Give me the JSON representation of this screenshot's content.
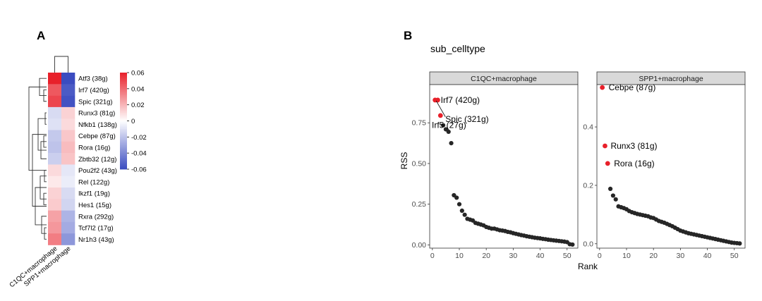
{
  "panels": {
    "a_label": "A",
    "b_label": "B"
  },
  "chart_data": [
    {
      "type": "heatmap",
      "rows": [
        "Atf3 (38g)",
        "Irf7 (420g)",
        "Spic (321g)",
        "Runx3 (81g)",
        "Nfkb1 (138g)",
        "Cebpe (87g)",
        "Rora (16g)",
        "Zbtb32 (12g)",
        "Pou2f2 (43g)",
        "Rel (122g)",
        "Ikzf1 (19g)",
        "Hes1 (15g)",
        "Rxra (292g)",
        "Tcf7l2 (17g)",
        "Nr1h3 (43g)"
      ],
      "columns": [
        "C1QC+macrophage",
        "SPP1+macrophage"
      ],
      "values": [
        [
          0.06,
          -0.06
        ],
        [
          0.045,
          -0.055
        ],
        [
          0.05,
          -0.058
        ],
        [
          -0.012,
          0.012
        ],
        [
          -0.01,
          0.01
        ],
        [
          -0.018,
          0.015
        ],
        [
          -0.02,
          0.018
        ],
        [
          -0.016,
          0.016
        ],
        [
          0.01,
          -0.008
        ],
        [
          0.006,
          -0.006
        ],
        [
          0.012,
          -0.012
        ],
        [
          0.014,
          -0.014
        ],
        [
          0.025,
          -0.025
        ],
        [
          0.028,
          -0.028
        ],
        [
          0.035,
          -0.035
        ]
      ],
      "colorbar": {
        "ticks": [
          "0.06",
          "0.04",
          "0.02",
          "0",
          "-0.02",
          "-0.04",
          "-0.06"
        ],
        "range": [
          -0.06,
          0.06
        ],
        "low_color": "#3b4cc0",
        "mid_color": "#ffffff",
        "high_color": "#e8202a"
      }
    },
    {
      "type": "scatter",
      "title": "sub_celltype",
      "xlabel": "Rank",
      "ylabel": "RSS",
      "facets": [
        {
          "name": "C1QC+macrophage",
          "xlim": [
            -1,
            54
          ],
          "ylim": [
            -0.02,
            0.985
          ],
          "xticks": [
            0,
            10,
            20,
            30,
            40,
            50
          ],
          "yticks": [
            0.0,
            0.25,
            0.5,
            0.75
          ],
          "ytick_labels": [
            "0.00",
            "0.25",
            "0.50",
            "0.75"
          ],
          "highlight": [
            {
              "x": 1,
              "y": 0.89,
              "label": "Irf7 (420g)"
            },
            {
              "x": 2,
              "y": 0.89,
              "label": ""
            },
            {
              "x": 3,
              "y": 0.795,
              "label": "Spic (321g)"
            }
          ],
          "label_irf5": "Irf5 (27g)",
          "points": [
            [
              4,
              0.735
            ],
            [
              5,
              0.71
            ],
            [
              6,
              0.695
            ],
            [
              7,
              0.625
            ],
            [
              8,
              0.305
            ],
            [
              9,
              0.29
            ],
            [
              10,
              0.25
            ],
            [
              11,
              0.21
            ],
            [
              12,
              0.185
            ],
            [
              13,
              0.16
            ],
            [
              14,
              0.155
            ],
            [
              15,
              0.15
            ],
            [
              16,
              0.135
            ],
            [
              17,
              0.13
            ],
            [
              18,
              0.125
            ],
            [
              19,
              0.12
            ],
            [
              20,
              0.11
            ],
            [
              21,
              0.105
            ],
            [
              22,
              0.1
            ],
            [
              23,
              0.1
            ],
            [
              24,
              0.095
            ],
            [
              25,
              0.09
            ],
            [
              26,
              0.088
            ],
            [
              27,
              0.085
            ],
            [
              28,
              0.08
            ],
            [
              29,
              0.077
            ],
            [
              30,
              0.072
            ],
            [
              31,
              0.068
            ],
            [
              32,
              0.064
            ],
            [
              33,
              0.06
            ],
            [
              34,
              0.057
            ],
            [
              35,
              0.053
            ],
            [
              36,
              0.05
            ],
            [
              37,
              0.047
            ],
            [
              38,
              0.044
            ],
            [
              39,
              0.042
            ],
            [
              40,
              0.04
            ],
            [
              41,
              0.037
            ],
            [
              42,
              0.035
            ],
            [
              43,
              0.032
            ],
            [
              44,
              0.03
            ],
            [
              45,
              0.028
            ],
            [
              46,
              0.026
            ],
            [
              47,
              0.024
            ],
            [
              48,
              0.022
            ],
            [
              49,
              0.02
            ],
            [
              50,
              0.017
            ],
            [
              51,
              0.004
            ],
            [
              52,
              0.002
            ]
          ]
        },
        {
          "name": "SPP1+macrophage",
          "xlim": [
            -1,
            54
          ],
          "ylim": [
            -0.015,
            0.545
          ],
          "xticks": [
            0,
            10,
            20,
            30,
            40,
            50
          ],
          "yticks": [
            0.0,
            0.2,
            0.4
          ],
          "ytick_labels": [
            "0.0",
            "0.2",
            "0.4"
          ],
          "highlight": [
            {
              "x": 1,
              "y": 0.535,
              "label": "Cebpe (87g)"
            },
            {
              "x": 2,
              "y": 0.335,
              "label": "Runx3 (81g)"
            },
            {
              "x": 3,
              "y": 0.275,
              "label": "Rora (16g)"
            }
          ],
          "points": [
            [
              4,
              0.188
            ],
            [
              5,
              0.165
            ],
            [
              6,
              0.152
            ],
            [
              7,
              0.128
            ],
            [
              8,
              0.125
            ],
            [
              9,
              0.122
            ],
            [
              10,
              0.118
            ],
            [
              11,
              0.112
            ],
            [
              12,
              0.108
            ],
            [
              13,
              0.105
            ],
            [
              14,
              0.102
            ],
            [
              15,
              0.1
            ],
            [
              16,
              0.098
            ],
            [
              17,
              0.096
            ],
            [
              18,
              0.094
            ],
            [
              19,
              0.09
            ],
            [
              20,
              0.088
            ],
            [
              21,
              0.083
            ],
            [
              22,
              0.078
            ],
            [
              23,
              0.075
            ],
            [
              24,
              0.072
            ],
            [
              25,
              0.068
            ],
            [
              26,
              0.064
            ],
            [
              27,
              0.06
            ],
            [
              28,
              0.055
            ],
            [
              29,
              0.05
            ],
            [
              30,
              0.045
            ],
            [
              31,
              0.042
            ],
            [
              32,
              0.039
            ],
            [
              33,
              0.036
            ],
            [
              34,
              0.034
            ],
            [
              35,
              0.032
            ],
            [
              36,
              0.03
            ],
            [
              37,
              0.028
            ],
            [
              38,
              0.026
            ],
            [
              39,
              0.024
            ],
            [
              40,
              0.022
            ],
            [
              41,
              0.02
            ],
            [
              42,
              0.018
            ],
            [
              43,
              0.016
            ],
            [
              44,
              0.014
            ],
            [
              45,
              0.012
            ],
            [
              46,
              0.01
            ],
            [
              47,
              0.008
            ],
            [
              48,
              0.006
            ],
            [
              49,
              0.004
            ],
            [
              50,
              0.003
            ],
            [
              51,
              0.002
            ],
            [
              52,
              0.001
            ]
          ]
        }
      ]
    }
  ]
}
